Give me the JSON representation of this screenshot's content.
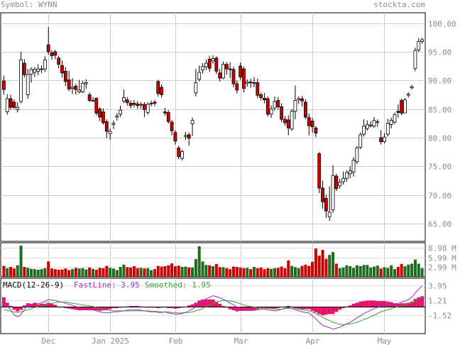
{
  "header": {
    "symbol_label": "Symbol: WYNN",
    "site": "stockta.com"
  },
  "chart_data": {
    "type": "candlestick",
    "symbol": "WYNN",
    "colors": {
      "up": "#ffffff",
      "down": "#cc0000",
      "vol_up": "#1f6b1f",
      "vol_down": "#cc0000",
      "fast_line": "#9933cc",
      "smoothed_line": "#33aa33",
      "histogram": "#e8106a"
    },
    "price_axis": {
      "ticks": [
        65.0,
        70.0,
        75.0,
        80.0,
        85.0,
        90.0,
        95.0,
        100.0
      ],
      "ylim": [
        61.9,
        101.8
      ]
    },
    "x_labels": [
      {
        "label": "Dec",
        "index": 13
      },
      {
        "label": "Jan 2025",
        "index": 31
      },
      {
        "label": "Feb",
        "index": 50
      },
      {
        "label": "Mar",
        "index": 69
      },
      {
        "label": "Apr",
        "index": 90
      },
      {
        "label": "May",
        "index": 111
      }
    ],
    "candles": [
      [
        89.9,
        88.4,
        90.8,
        87.5
      ],
      [
        84.5,
        86.8,
        87.6,
        84.0
      ],
      [
        86.8,
        85.3,
        87.5,
        84.9
      ],
      [
        86.2,
        85.3,
        86.7,
        85.0
      ],
      [
        84.9,
        85.3,
        86.2,
        84.4
      ],
      [
        86.3,
        93.6,
        95.0,
        86.0
      ],
      [
        93.0,
        91.0,
        93.7,
        90.5
      ],
      [
        87.5,
        91.0,
        92.0,
        86.8
      ],
      [
        91.1,
        91.9,
        92.3,
        89.6
      ],
      [
        91.4,
        91.9,
        92.3,
        90.6
      ],
      [
        91.6,
        92.0,
        92.8,
        90.9
      ],
      [
        92.0,
        92.0,
        92.6,
        91.3
      ],
      [
        92.0,
        93.6,
        94.2,
        91.5
      ],
      [
        96.2,
        95.0,
        99.3,
        94.5
      ],
      [
        94.8,
        94.3,
        95.3,
        93.6
      ],
      [
        95.0,
        94.4,
        95.3,
        93.7
      ],
      [
        93.9,
        92.8,
        94.3,
        92.1
      ],
      [
        92.6,
        91.3,
        93.5,
        90.5
      ],
      [
        91.6,
        89.8,
        92.3,
        89.0
      ],
      [
        90.1,
        88.5,
        91.7,
        88.1
      ],
      [
        88.6,
        88.8,
        90.4,
        87.6
      ],
      [
        89.0,
        88.4,
        89.4,
        87.5
      ],
      [
        88.0,
        88.3,
        90.1,
        87.7
      ],
      [
        88.0,
        89.5,
        89.9,
        87.8
      ],
      [
        89.4,
        89.6,
        90.2,
        88.5
      ],
      [
        87.5,
        86.5,
        87.9,
        86.2
      ],
      [
        86.5,
        86.5,
        87.1,
        86.3
      ],
      [
        86.9,
        84.3,
        87.0,
        83.9
      ],
      [
        85.0,
        83.6,
        85.3,
        82.9
      ],
      [
        84.5,
        82.6,
        85.1,
        82.3
      ],
      [
        82.8,
        81.1,
        83.2,
        79.9
      ],
      [
        80.7,
        81.1,
        81.6,
        79.6
      ],
      [
        82.3,
        82.5,
        83.0,
        81.5
      ],
      [
        83.6,
        83.8,
        84.3,
        83.0
      ],
      [
        84.1,
        84.8,
        85.6,
        83.6
      ],
      [
        86.4,
        87.0,
        88.4,
        86.0
      ],
      [
        86.6,
        86.1,
        87.1,
        85.6
      ],
      [
        86.0,
        85.6,
        86.5,
        85.1
      ],
      [
        86.0,
        85.8,
        86.6,
        85.3
      ],
      [
        85.9,
        85.6,
        86.4,
        85.0
      ],
      [
        85.7,
        85.8,
        86.2,
        85.0
      ],
      [
        85.8,
        84.9,
        86.2,
        83.6
      ],
      [
        84.4,
        85.8,
        86.2,
        84.0
      ],
      [
        86.0,
        86.0,
        86.5,
        85.5
      ],
      [
        86.2,
        86.0,
        86.6,
        85.5
      ],
      [
        89.8,
        87.7,
        90.1,
        87.2
      ],
      [
        88.8,
        87.5,
        89.3,
        87.0
      ],
      [
        84.5,
        84.3,
        85.2,
        83.8
      ],
      [
        84.4,
        82.8,
        84.8,
        82.5
      ],
      [
        82.7,
        81.2,
        83.1,
        80.4
      ],
      [
        80.9,
        79.4,
        81.3,
        78.8
      ],
      [
        78.2,
        76.7,
        78.6,
        76.2
      ],
      [
        76.4,
        77.6,
        77.9,
        76.0
      ],
      [
        80.2,
        80.4,
        81.0,
        79.6
      ],
      [
        80.5,
        79.9,
        80.9,
        78.6
      ],
      [
        82.4,
        83.0,
        83.5,
        80.3
      ],
      [
        87.8,
        89.6,
        92.0,
        87.2
      ],
      [
        90.2,
        91.4,
        92.6,
        89.8
      ],
      [
        91.8,
        92.4,
        93.0,
        91.2
      ],
      [
        92.4,
        93.0,
        93.6,
        91.8
      ],
      [
        93.7,
        92.1,
        94.3,
        91.5
      ],
      [
        93.4,
        93.8,
        94.4,
        92.9
      ],
      [
        93.9,
        91.6,
        94.2,
        91.1
      ],
      [
        91.3,
        90.4,
        92.0,
        89.8
      ],
      [
        90.4,
        92.8,
        93.3,
        90.2
      ],
      [
        92.8,
        92.0,
        93.2,
        91.0
      ],
      [
        92.0,
        91.9,
        93.2,
        90.4
      ],
      [
        91.9,
        89.4,
        92.4,
        88.8
      ],
      [
        89.4,
        88.3,
        90.0,
        87.7
      ],
      [
        92.5,
        90.6,
        93.1,
        90.1
      ],
      [
        92.0,
        88.6,
        92.4,
        87.9
      ],
      [
        89.5,
        89.7,
        90.2,
        88.9
      ],
      [
        89.7,
        89.6,
        90.3,
        88.7
      ],
      [
        89.6,
        89.6,
        90.6,
        88.8
      ],
      [
        89.6,
        87.4,
        90.3,
        86.9
      ],
      [
        87.5,
        87.0,
        87.9,
        86.5
      ],
      [
        86.9,
        86.6,
        87.8,
        86.0
      ],
      [
        86.8,
        84.1,
        87.2,
        83.7
      ],
      [
        84.1,
        85.0,
        85.6,
        83.5
      ],
      [
        85.2,
        86.3,
        87.2,
        84.7
      ],
      [
        86.5,
        85.4,
        87.1,
        84.9
      ],
      [
        85.4,
        83.2,
        86.0,
        82.7
      ],
      [
        83.2,
        82.6,
        83.8,
        82.1
      ],
      [
        83.1,
        81.7,
        83.9,
        80.4
      ],
      [
        81.5,
        84.6,
        85.0,
        81.2
      ],
      [
        84.6,
        86.5,
        89.1,
        83.2
      ],
      [
        86.6,
        86.8,
        87.2,
        85.9
      ],
      [
        86.8,
        86.4,
        87.3,
        85.4
      ],
      [
        86.2,
        83.6,
        86.7,
        83.2
      ],
      [
        83.5,
        82.1,
        84.2,
        80.4
      ],
      [
        82.9,
        81.9,
        83.4,
        80.9
      ],
      [
        81.7,
        80.8,
        82.0,
        80.1
      ],
      [
        77.2,
        71.2,
        77.5,
        70.3
      ],
      [
        71.2,
        68.8,
        72.5,
        67.6
      ],
      [
        69.4,
        67.2,
        70.1,
        66.0
      ],
      [
        66.2,
        67.0,
        71.5,
        65.5
      ],
      [
        67.4,
        73.4,
        75.2,
        66.9
      ],
      [
        73.3,
        71.1,
        73.7,
        70.7
      ],
      [
        71.6,
        72.2,
        72.8,
        71.1
      ],
      [
        72.3,
        72.9,
        74.1,
        71.8
      ],
      [
        72.9,
        73.9,
        74.3,
        72.3
      ],
      [
        73.7,
        74.2,
        75.0,
        72.9
      ],
      [
        74.0,
        76.1,
        76.6,
        73.2
      ],
      [
        75.8,
        78.2,
        78.6,
        75.4
      ],
      [
        78.3,
        80.5,
        80.9,
        78.0
      ],
      [
        80.6,
        82.0,
        83.2,
        80.2
      ],
      [
        81.6,
        82.3,
        83.0,
        81.2
      ],
      [
        82.2,
        82.2,
        82.9,
        81.8
      ],
      [
        82.0,
        83.0,
        83.6,
        81.7
      ],
      [
        82.8,
        82.8,
        83.2,
        81.9
      ],
      [
        80.0,
        79.3,
        81.3,
        78.8
      ],
      [
        79.3,
        80.1,
        80.8,
        79.0
      ],
      [
        80.6,
        82.5,
        83.3,
        80.2
      ],
      [
        82.3,
        83.0,
        83.5,
        81.6
      ],
      [
        82.7,
        84.0,
        84.4,
        82.4
      ],
      [
        84.6,
        84.4,
        85.8,
        83.5
      ],
      [
        86.5,
        84.3,
        86.8,
        83.9
      ],
      [
        84.3,
        86.6,
        86.9,
        84.3
      ],
      [
        87.4,
        87.6,
        87.9,
        87.0
      ],
      [
        88.7,
        88.9,
        89.2,
        88.4
      ],
      [
        92.1,
        95.2,
        95.7,
        91.6
      ],
      [
        95.3,
        96.8,
        97.4,
        95.0
      ],
      [
        96.8,
        97.1,
        97.4,
        96.4
      ]
    ],
    "volume": {
      "ticks": [
        2.99,
        5.99,
        8.98
      ],
      "tick_labels": [
        "2.99 M",
        "5.99 M",
        "8.98 M"
      ],
      "unit": "M",
      "ylim": [
        0,
        10.6
      ],
      "values": [
        3.4,
        2.7,
        3.1,
        2.6,
        3.6,
        9.7,
        3.1,
        2.8,
        2.5,
        2.4,
        2.2,
        2.4,
        2.7,
        4.8,
        2.6,
        2.4,
        2.2,
        2.3,
        2.6,
        2.1,
        2.4,
        2.8,
        2.6,
        2.7,
        2.3,
        2.9,
        2.5,
        2.2,
        2.8,
        2.7,
        3.4,
        2.8,
        2.6,
        2.1,
        3.1,
        3.8,
        3.0,
        2.9,
        3.3,
        2.7,
        2.8,
        2.6,
        2.7,
        2.1,
        2.4,
        3.4,
        3.2,
        3.3,
        3.6,
        4.2,
        3.3,
        3.5,
        3.1,
        3.2,
        2.9,
        2.9,
        5.5,
        9.5,
        4.8,
        3.7,
        3.6,
        3.3,
        4.0,
        3.0,
        3.0,
        2.7,
        2.4,
        3.2,
        3.1,
        2.9,
        2.7,
        2.8,
        2.4,
        3.1,
        2.7,
        2.9,
        2.4,
        2.7,
        2.5,
        2.7,
        2.8,
        3.2,
        2.7,
        5.1,
        3.4,
        3.0,
        2.7,
        3.4,
        3.8,
        3.4,
        4.7,
        8.8,
        6.6,
        8.4,
        5.6,
        6.8,
        7.7,
        4.1,
        2.7,
        2.9,
        3.6,
        3.3,
        2.8,
        3.6,
        3.3,
        3.7,
        3.7,
        2.9,
        3.2,
        3.5,
        2.6,
        3.0,
        2.8,
        3.6,
        2.4,
        3.1,
        4.0,
        3.3,
        3.8,
        4.1,
        5.4,
        4.1,
        2.7
      ]
    },
    "macd": {
      "label": "MACD(12-26-9)",
      "fast_label": "FastLine: 3.95",
      "smoothed_label": "Smoothed: 1.95",
      "ticks": [
        3.95,
        1.21,
        -1.52
      ],
      "ylim": [
        -4.9,
        5.3
      ],
      "fast": [
        1.4,
        0.2,
        -0.6,
        -1.4,
        -1.8,
        -1.4,
        -0.4,
        0.2,
        0.3,
        0.7,
        0.6,
        0.8,
        1.0,
        1.4,
        1.3,
        1.2,
        1.0,
        0.9,
        0.7,
        0.5,
        0.3,
        0.1,
        -0.1,
        -0.2,
        -0.3,
        -0.4,
        -0.5,
        -0.7,
        -0.9,
        -1.0,
        -1.1,
        -1.0,
        -0.9,
        -0.9,
        -0.8,
        -0.7,
        -0.6,
        -0.5,
        -0.5,
        -0.5,
        -0.6,
        -0.7,
        -0.8,
        -0.9,
        -0.9,
        -1.0,
        -1.0,
        -0.9,
        -1.1,
        -1.2,
        -1.3,
        -1.3,
        -1.2,
        -1.0,
        -0.7,
        -0.4,
        0.1,
        0.7,
        1.1,
        1.5,
        1.8,
        2.1,
        1.9,
        1.7,
        1.4,
        1.1,
        0.7,
        0.4,
        0.0,
        -0.1,
        -0.3,
        -0.5,
        -0.6,
        -0.6,
        -0.5,
        -0.4,
        -0.4,
        -0.5,
        -0.6,
        -0.7,
        -0.6,
        -0.4,
        -0.2,
        -0.1,
        -0.3,
        -0.5,
        -0.7,
        -0.9,
        -1.0,
        -1.1,
        -1.6,
        -2.2,
        -2.8,
        -3.4,
        -3.6,
        -3.8,
        -4.1,
        -3.9,
        -3.7,
        -3.4,
        -3.1,
        -2.8,
        -2.4,
        -2.0,
        -1.6,
        -1.2,
        -0.9,
        -0.6,
        -0.3,
        -0.1,
        0.2,
        0.4,
        0.5,
        0.6,
        0.6,
        0.7,
        0.9,
        1.1,
        1.4,
        1.8,
        2.6,
        3.3,
        3.95
      ],
      "smoothed": [
        -0.4,
        -0.6,
        -0.8,
        -0.9,
        -1.0,
        -0.9,
        -0.7,
        -0.5,
        -0.3,
        -0.1,
        0.1,
        0.2,
        0.4,
        0.6,
        0.7,
        0.8,
        0.9,
        0.9,
        0.9,
        0.8,
        0.7,
        0.6,
        0.5,
        0.4,
        0.3,
        0.2,
        0.1,
        -0.1,
        -0.2,
        -0.4,
        -0.5,
        -0.6,
        -0.7,
        -0.7,
        -0.7,
        -0.7,
        -0.7,
        -0.7,
        -0.7,
        -0.7,
        -0.7,
        -0.7,
        -0.7,
        -0.8,
        -0.8,
        -0.8,
        -0.9,
        -0.9,
        -0.9,
        -1.0,
        -1.0,
        -1.1,
        -1.1,
        -1.0,
        -1.0,
        -0.9,
        -0.7,
        -0.5,
        -0.3,
        0.1,
        0.4,
        0.7,
        0.9,
        1.1,
        1.2,
        1.2,
        1.1,
        1.0,
        0.8,
        0.6,
        0.4,
        0.2,
        0.1,
        0.0,
        -0.1,
        -0.2,
        -0.2,
        -0.3,
        -0.3,
        -0.4,
        -0.4,
        -0.4,
        -0.3,
        -0.3,
        -0.3,
        -0.3,
        -0.4,
        -0.5,
        -0.6,
        -0.7,
        -0.9,
        -1.2,
        -1.5,
        -1.9,
        -2.2,
        -2.5,
        -2.8,
        -3.0,
        -3.2,
        -3.2,
        -3.2,
        -3.1,
        -3.0,
        -2.8,
        -2.6,
        -2.3,
        -2.1,
        -1.8,
        -1.5,
        -1.2,
        -0.9,
        -0.7,
        -0.5,
        -0.3,
        -0.1,
        0.1,
        0.2,
        0.4,
        0.6,
        0.8,
        1.1,
        1.5,
        1.95
      ]
    }
  }
}
